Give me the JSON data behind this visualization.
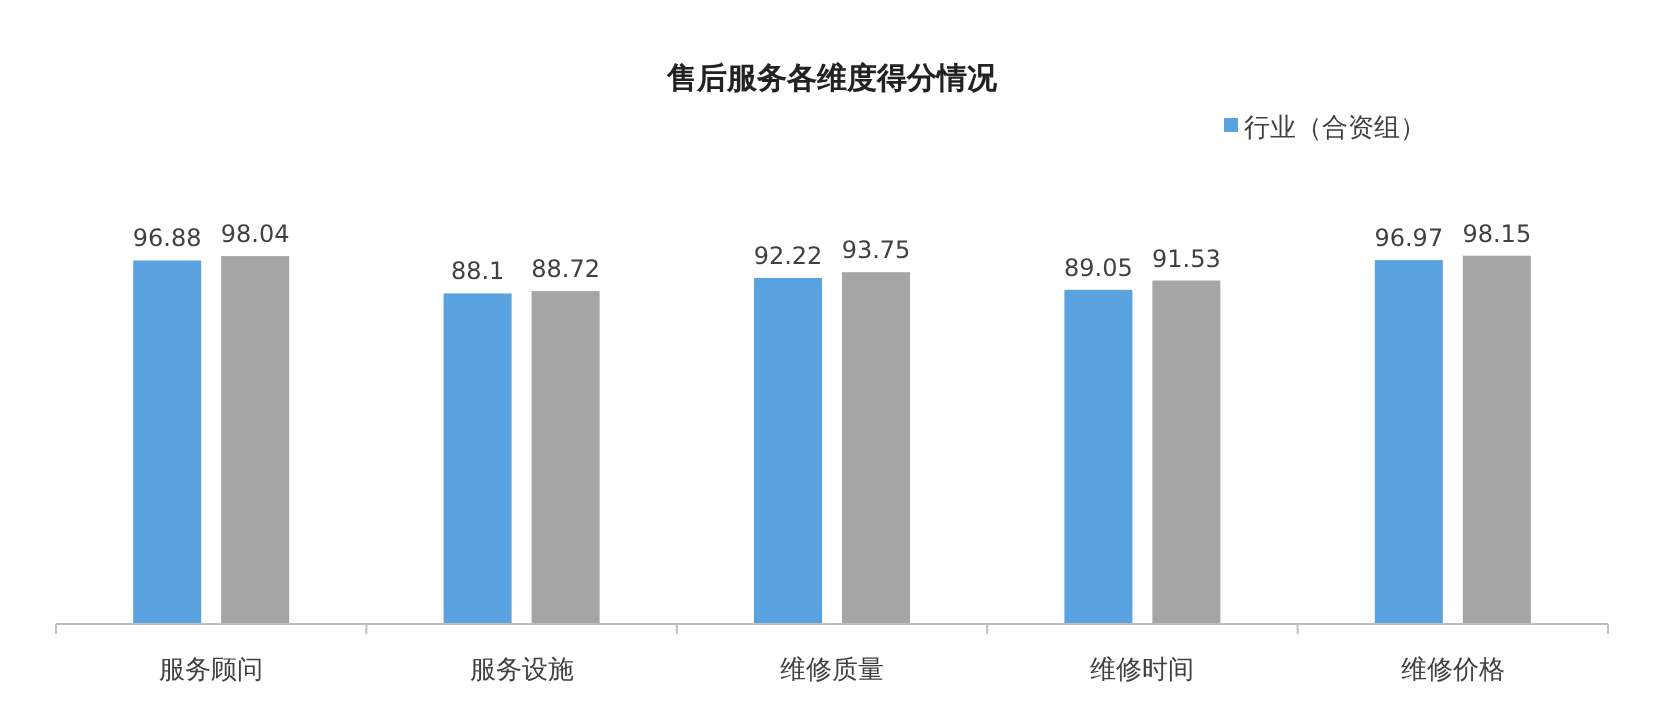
{
  "chart_data": {
    "type": "bar",
    "title": "售后服务各维度得分情况",
    "categories": [
      "服务顾问",
      "服务设施",
      "维修质量",
      "维修时间",
      "维修价格"
    ],
    "series": [
      {
        "name": "行业（合资组）",
        "color": "#5ba3e0",
        "values": [
          96.88,
          88.1,
          92.22,
          89.05,
          96.97
        ]
      },
      {
        "color": "#a5a5a5",
        "values": [
          98.04,
          88.72,
          93.75,
          91.53,
          98.15
        ]
      }
    ],
    "data_labels": true,
    "legend": "top right"
  }
}
